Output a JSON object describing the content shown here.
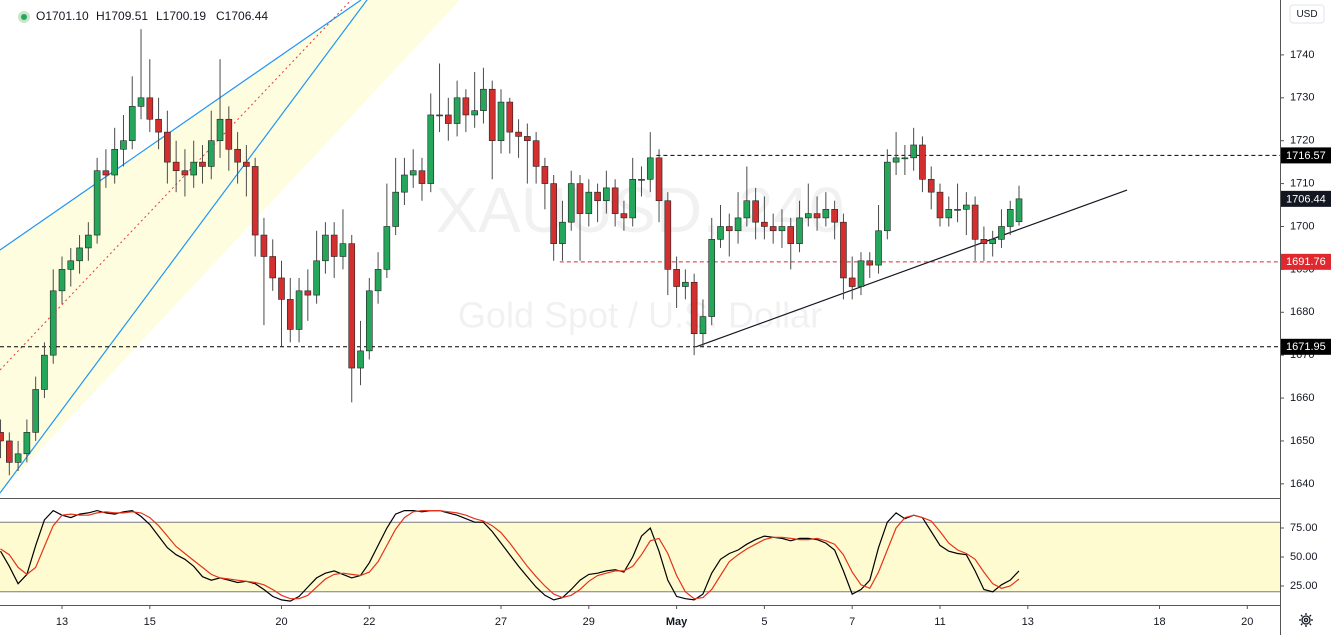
{
  "chart_data": {
    "type": "candlestick",
    "ohlc": [
      "O1701.10",
      "H1709.51",
      "L1700.19",
      "C1706.44"
    ],
    "currency": "USD",
    "watermark": [
      "XAUUSD, 240",
      "Gold Spot / U.S. Dollar"
    ],
    "categories": [
      null,
      null,
      null,
      null,
      null,
      null,
      null,
      "13",
      null,
      null,
      null,
      null,
      null,
      null,
      null,
      null,
      null,
      "15",
      null,
      null,
      null,
      null,
      null,
      null,
      null,
      null,
      null,
      null,
      null,
      null,
      null,
      null,
      "20",
      null,
      null,
      null,
      null,
      null,
      null,
      null,
      null,
      null,
      "22",
      null,
      null,
      null,
      null,
      null,
      null,
      null,
      null,
      null,
      null,
      null,
      null,
      null,
      null,
      "27",
      null,
      null,
      null,
      null,
      null,
      null,
      null,
      null,
      null,
      "29",
      null,
      null,
      null,
      null,
      null,
      null,
      null,
      null,
      null,
      "May",
      null,
      null,
      null,
      null,
      null,
      null,
      null,
      null,
      null,
      "5",
      null,
      null,
      null,
      null,
      null,
      null,
      null,
      null,
      null,
      "7",
      null,
      null,
      null,
      null,
      null,
      null,
      null,
      null,
      null,
      "11",
      null,
      null,
      null,
      null,
      null,
      null,
      null,
      null,
      null,
      "13",
      null,
      null,
      null,
      null,
      null,
      null,
      null,
      null,
      null,
      null,
      null,
      null,
      null,
      null,
      "18",
      null,
      null,
      null,
      null,
      null,
      null,
      null,
      null,
      null,
      "20",
      null,
      null,
      null
    ],
    "candles": [
      [
        1652,
        1655,
        1646,
        1650
      ],
      [
        1650,
        1652,
        1642,
        1645
      ],
      [
        1645,
        1650,
        1643,
        1647
      ],
      [
        1647,
        1655,
        1645,
        1652
      ],
      [
        1652,
        1665,
        1650,
        1662
      ],
      [
        1662,
        1673,
        1660,
        1670
      ],
      [
        1670,
        1690,
        1668,
        1685
      ],
      [
        1685,
        1693,
        1682,
        1690
      ],
      [
        1690,
        1695,
        1686,
        1692
      ],
      [
        1692,
        1698,
        1689,
        1695
      ],
      [
        1695,
        1701,
        1692,
        1698
      ],
      [
        1698,
        1716,
        1696,
        1713
      ],
      [
        1713,
        1718,
        1709,
        1712
      ],
      [
        1712,
        1723,
        1710,
        1718
      ],
      [
        1718,
        1726,
        1714,
        1720
      ],
      [
        1720,
        1735,
        1718,
        1728
      ],
      [
        1728,
        1746,
        1725,
        1730
      ],
      [
        1730,
        1739,
        1722,
        1725
      ],
      [
        1725,
        1730,
        1718,
        1722
      ],
      [
        1722,
        1727,
        1710,
        1715
      ],
      [
        1715,
        1720,
        1708,
        1713
      ],
      [
        1713,
        1718,
        1707,
        1712
      ],
      [
        1712,
        1720,
        1709,
        1715
      ],
      [
        1715,
        1719,
        1710,
        1714
      ],
      [
        1714,
        1727,
        1711,
        1720
      ],
      [
        1720,
        1739,
        1716,
        1725
      ],
      [
        1725,
        1728,
        1713,
        1718
      ],
      [
        1718,
        1722,
        1710,
        1715
      ],
      [
        1715,
        1719,
        1707,
        1714
      ],
      [
        1714,
        1716,
        1693,
        1698
      ],
      [
        1698,
        1702,
        1677,
        1693
      ],
      [
        1693,
        1697,
        1685,
        1688
      ],
      [
        1688,
        1692,
        1672,
        1683
      ],
      [
        1683,
        1688,
        1673,
        1676
      ],
      [
        1676,
        1688,
        1673,
        1685
      ],
      [
        1685,
        1690,
        1678,
        1684
      ],
      [
        1684,
        1699,
        1682,
        1692
      ],
      [
        1692,
        1701,
        1689,
        1698
      ],
      [
        1698,
        1701,
        1688,
        1693
      ],
      [
        1693,
        1704,
        1690,
        1696
      ],
      [
        1696,
        1698,
        1659,
        1667
      ],
      [
        1667,
        1678,
        1663,
        1671
      ],
      [
        1671,
        1688,
        1669,
        1685
      ],
      [
        1685,
        1694,
        1682,
        1690
      ],
      [
        1690,
        1710,
        1688,
        1700
      ],
      [
        1700,
        1716,
        1698,
        1708
      ],
      [
        1708,
        1716,
        1705,
        1712
      ],
      [
        1712,
        1718,
        1709,
        1713
      ],
      [
        1713,
        1716,
        1706,
        1710
      ],
      [
        1710,
        1731,
        1708,
        1726
      ],
      [
        1726,
        1738,
        1722,
        1726
      ],
      [
        1726,
        1730,
        1720,
        1724
      ],
      [
        1724,
        1734,
        1721,
        1730
      ],
      [
        1730,
        1732,
        1722,
        1726
      ],
      [
        1726,
        1736,
        1723,
        1727
      ],
      [
        1727,
        1737,
        1724,
        1732
      ],
      [
        1732,
        1734,
        1711,
        1720
      ],
      [
        1720,
        1732,
        1717,
        1729
      ],
      [
        1729,
        1730,
        1717,
        1722
      ],
      [
        1722,
        1725,
        1716,
        1721
      ],
      [
        1721,
        1724,
        1710,
        1720
      ],
      [
        1720,
        1722,
        1710,
        1714
      ],
      [
        1714,
        1716,
        1704,
        1710
      ],
      [
        1710,
        1712,
        1692,
        1696
      ],
      [
        1696,
        1706,
        1692,
        1701
      ],
      [
        1701,
        1713,
        1699,
        1710
      ],
      [
        1710,
        1712,
        1692,
        1703
      ],
      [
        1703,
        1711,
        1700,
        1708
      ],
      [
        1708,
        1710,
        1701,
        1706
      ],
      [
        1706,
        1713,
        1703,
        1709
      ],
      [
        1709,
        1711,
        1700,
        1703
      ],
      [
        1703,
        1706,
        1699,
        1702
      ],
      [
        1702,
        1716,
        1700,
        1711
      ],
      [
        1711,
        1714,
        1707,
        1711
      ],
      [
        1711,
        1722,
        1708,
        1716
      ],
      [
        1716,
        1718,
        1701,
        1706
      ],
      [
        1706,
        1708,
        1684,
        1690
      ],
      [
        1690,
        1693,
        1681,
        1686
      ],
      [
        1686,
        1690,
        1683,
        1687
      ],
      [
        1687,
        1689,
        1670,
        1675
      ],
      [
        1675,
        1683,
        1672,
        1679
      ],
      [
        1679,
        1702,
        1677,
        1697
      ],
      [
        1697,
        1705,
        1695,
        1700
      ],
      [
        1700,
        1703,
        1693,
        1699
      ],
      [
        1699,
        1708,
        1696,
        1702
      ],
      [
        1702,
        1714,
        1700,
        1706
      ],
      [
        1706,
        1709,
        1697,
        1701
      ],
      [
        1701,
        1707,
        1697,
        1700
      ],
      [
        1700,
        1703,
        1696,
        1699
      ],
      [
        1699,
        1704,
        1695,
        1700
      ],
      [
        1700,
        1702,
        1690,
        1696
      ],
      [
        1696,
        1706,
        1694,
        1702
      ],
      [
        1702,
        1710,
        1700,
        1703
      ],
      [
        1703,
        1707,
        1699,
        1702
      ],
      [
        1702,
        1708,
        1700,
        1704
      ],
      [
        1704,
        1706,
        1697,
        1701
      ],
      [
        1701,
        1703,
        1683,
        1688
      ],
      [
        1688,
        1693,
        1683,
        1686
      ],
      [
        1686,
        1694,
        1684,
        1692
      ],
      [
        1692,
        1694,
        1688,
        1691
      ],
      [
        1691,
        1705,
        1689,
        1699
      ],
      [
        1699,
        1718,
        1697,
        1715
      ],
      [
        1715,
        1722,
        1712,
        1716
      ],
      [
        1716,
        1719,
        1712,
        1716
      ],
      [
        1716,
        1723,
        1713,
        1719
      ],
      [
        1719,
        1721,
        1708,
        1711
      ],
      [
        1711,
        1714,
        1704,
        1708
      ],
      [
        1708,
        1710,
        1700,
        1702
      ],
      [
        1702,
        1707,
        1700,
        1704
      ],
      [
        1704,
        1710,
        1701,
        1704
      ],
      [
        1704,
        1708,
        1698,
        1705
      ],
      [
        1705,
        1707,
        1692,
        1697
      ],
      [
        1697,
        1700,
        1692,
        1696
      ],
      [
        1696,
        1699,
        1693,
        1697
      ],
      [
        1697,
        1704,
        1695,
        1700
      ],
      [
        1700,
        1706,
        1698,
        1704
      ],
      [
        1701.1,
        1709.51,
        1700.19,
        1706.44
      ],
      null,
      null,
      null,
      null,
      null,
      null,
      null,
      null,
      null,
      null,
      null,
      null,
      null,
      null,
      null,
      null,
      null,
      null,
      null,
      null,
      null,
      null,
      null,
      null,
      null,
      null,
      null,
      null,
      null
    ],
    "up_color": "#26a65b",
    "down_color": "#d32f2f",
    "ylim": [
      1636.7,
      1752.8
    ],
    "yticks": [
      1640,
      1650,
      1660,
      1670,
      1680,
      1690,
      1700,
      1710,
      1720,
      1730,
      1740
    ],
    "levels": [
      {
        "value": 1716.57,
        "color": "#000000"
      },
      {
        "value": 1691.76,
        "color": "#e0282e"
      },
      {
        "value": 1671.95,
        "color": "#000000"
      }
    ],
    "last_price": 1706.44,
    "trendline": {
      "from": [
        79.3,
        1672
      ],
      "to": [
        128.3,
        1708.5
      ]
    },
    "stochastic": {
      "ylim": [
        8.6,
        100
      ],
      "band": [
        20,
        80
      ],
      "yticks": [
        {
          "value": 25,
          "label": "25.00"
        },
        {
          "value": 50,
          "label": "50.00"
        },
        {
          "value": 75,
          "label": "75.00"
        }
      ],
      "series": [
        {
          "color": "#000000",
          "values": [
            55,
            42,
            27,
            35,
            60,
            82,
            90,
            86,
            84,
            87,
            88,
            90,
            88,
            87,
            89,
            90,
            85,
            78,
            68,
            58,
            52,
            48,
            42,
            33,
            30,
            32,
            30,
            28,
            29,
            27,
            22,
            16,
            13,
            12,
            16,
            24,
            32,
            36,
            38,
            35,
            32,
            34,
            45,
            60,
            75,
            87,
            90,
            90,
            89,
            90,
            90,
            88,
            86,
            83,
            80,
            80,
            72,
            62,
            52,
            42,
            33,
            24,
            17,
            13,
            15,
            22,
            30,
            35,
            36,
            38,
            39,
            37,
            50,
            68,
            75,
            55,
            30,
            16,
            14,
            13,
            18,
            36,
            48,
            53,
            56,
            61,
            65,
            68,
            67,
            66,
            64,
            66,
            66,
            65,
            62,
            56,
            38,
            18,
            22,
            30,
            58,
            80,
            88,
            83,
            86,
            84,
            72,
            60,
            55,
            53,
            52,
            38,
            22,
            20,
            26,
            30,
            38,
            null,
            null,
            null,
            null,
            null,
            null,
            null,
            null,
            null,
            null,
            null,
            null,
            null,
            null,
            null,
            null,
            null,
            null,
            null,
            null,
            null,
            null,
            null,
            null,
            null,
            null,
            null,
            null,
            null
          ]
        },
        {
          "color": "#e5331b",
          "values": [
            57,
            52,
            41,
            35,
            41,
            59,
            77,
            86,
            87,
            86,
            86,
            88,
            89,
            88,
            88,
            89,
            88,
            84,
            77,
            68,
            59,
            53,
            47,
            41,
            35,
            32,
            31,
            30,
            29,
            28,
            26,
            22,
            17,
            14,
            14,
            17,
            24,
            31,
            35,
            36,
            35,
            34,
            37,
            46,
            60,
            74,
            84,
            89,
            90,
            90,
            90,
            89,
            88,
            86,
            83,
            81,
            77,
            71,
            62,
            52,
            42,
            33,
            25,
            18,
            15,
            17,
            22,
            29,
            34,
            36,
            38,
            38,
            42,
            52,
            64,
            66,
            53,
            34,
            20,
            14,
            15,
            22,
            34,
            46,
            52,
            57,
            61,
            65,
            67,
            67,
            66,
            65,
            65,
            66,
            64,
            61,
            52,
            37,
            26,
            23,
            37,
            56,
            75,
            84,
            86,
            84,
            81,
            72,
            62,
            56,
            53,
            48,
            37,
            27,
            23,
            25,
            31,
            null,
            null,
            null,
            null,
            null,
            null,
            null,
            null,
            null,
            null,
            null,
            null,
            null,
            null,
            null,
            null,
            null,
            null,
            null,
            null,
            null,
            null,
            null,
            null,
            null,
            null,
            null,
            null,
            null
          ]
        }
      ]
    }
  }
}
